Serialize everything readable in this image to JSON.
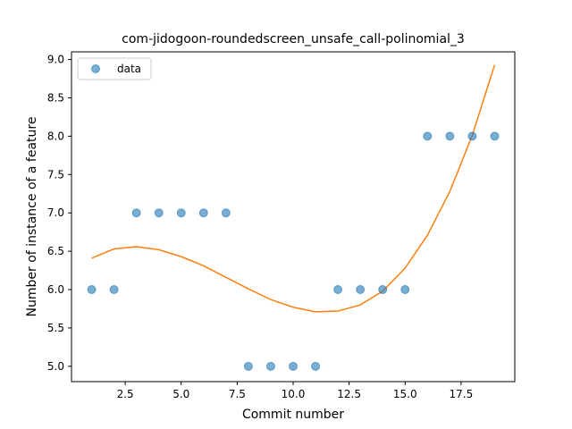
{
  "chart_data": {
    "type": "scatter",
    "title": "com-jidogoon-roundedscreen_unsafe_call-polinomial_3",
    "xlabel": "Commit number",
    "ylabel": "Number of instance of a feature",
    "xlim": [
      0.1,
      19.9
    ],
    "ylim": [
      4.8,
      9.1
    ],
    "xticks": [
      2.5,
      5.0,
      7.5,
      10.0,
      12.5,
      15.0,
      17.5
    ],
    "xtick_labels": [
      "2.5",
      "5.0",
      "7.5",
      "10.0",
      "12.5",
      "15.0",
      "17.5"
    ],
    "yticks": [
      5.0,
      5.5,
      6.0,
      6.5,
      7.0,
      7.5,
      8.0,
      8.5,
      9.0
    ],
    "ytick_labels": [
      "5.0",
      "5.5",
      "6.0",
      "6.5",
      "7.0",
      "7.5",
      "8.0",
      "8.5",
      "9.0"
    ],
    "grid": false,
    "legend_position": "top-left",
    "series": [
      {
        "name": "data",
        "kind": "scatter",
        "color": "#1f77b4",
        "x": [
          1,
          2,
          3,
          4,
          5,
          6,
          7,
          8,
          9,
          10,
          11,
          12,
          13,
          14,
          15,
          16,
          17,
          18,
          19
        ],
        "y": [
          6,
          6,
          7,
          7,
          7,
          7,
          7,
          5,
          5,
          5,
          5,
          6,
          6,
          6,
          6,
          8,
          8,
          8,
          8
        ]
      },
      {
        "kind": "line",
        "color": "#ff7f0e",
        "x": [
          1,
          2,
          3,
          4,
          5,
          6,
          7,
          8,
          9,
          10,
          11,
          12,
          13,
          14,
          15,
          16,
          17,
          18,
          19
        ],
        "y": [
          6.41,
          6.53,
          6.56,
          6.52,
          6.43,
          6.31,
          6.16,
          6.01,
          5.87,
          5.77,
          5.71,
          5.72,
          5.8,
          5.98,
          6.28,
          6.71,
          7.28,
          8.01,
          8.93
        ]
      }
    ]
  }
}
